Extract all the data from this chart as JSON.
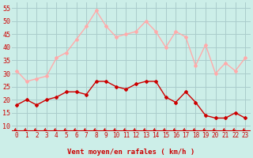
{
  "hours": [
    0,
    1,
    2,
    3,
    4,
    5,
    6,
    7,
    8,
    9,
    10,
    11,
    12,
    13,
    14,
    15,
    16,
    17,
    18,
    19,
    20,
    21,
    22,
    23
  ],
  "wind_avg": [
    18,
    20,
    18,
    20,
    21,
    23,
    23,
    22,
    27,
    27,
    25,
    24,
    26,
    27,
    27,
    21,
    19,
    23,
    19,
    14,
    13,
    13,
    15,
    13
  ],
  "wind_gust": [
    31,
    27,
    28,
    29,
    36,
    38,
    43,
    48,
    54,
    48,
    44,
    45,
    46,
    50,
    46,
    40,
    46,
    44,
    33,
    41,
    30,
    34,
    31,
    36
  ],
  "avg_color": "#cc0000",
  "gust_color": "#ffaaaa",
  "bg_color": "#cceee8",
  "grid_color": "#aacccc",
  "xlabel": "Vent moyen/en rafales ( km/h )",
  "ylim": [
    8,
    57
  ],
  "yticks": [
    10,
    15,
    20,
    25,
    30,
    35,
    40,
    45,
    50,
    55
  ],
  "marker": "D",
  "marker_size": 2.0,
  "line_width": 1.0,
  "label_color": "#cc0000",
  "axis_line_color": "#cc0000",
  "xlabel_fontsize": 6.5,
  "tick_fontsize": 5.5,
  "ytick_fontsize": 6.0
}
